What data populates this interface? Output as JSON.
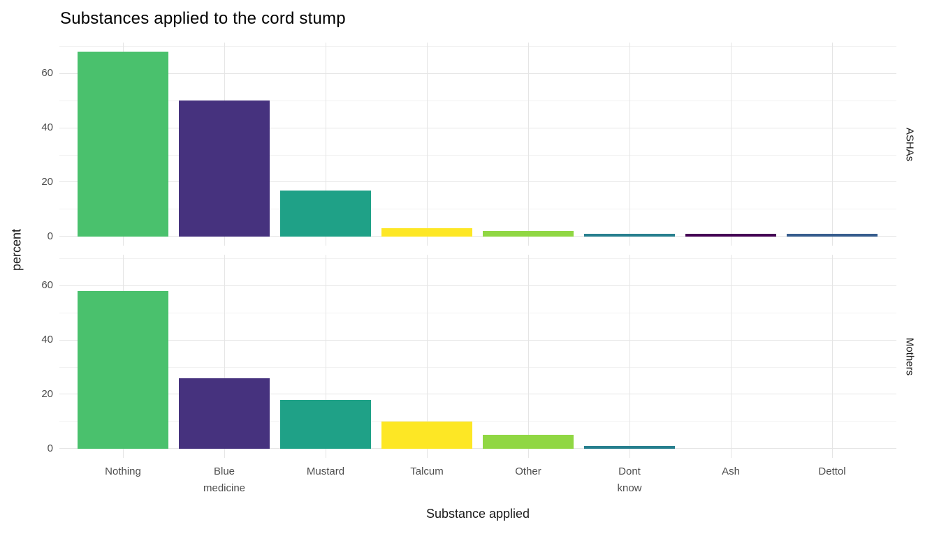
{
  "chart_data": {
    "type": "bar",
    "title": "Substances applied to the cord stump",
    "xlabel": "Substance applied",
    "ylabel": "percent",
    "facet_layout": "rows-right-strips",
    "categories": [
      "Nothing",
      "Blue medicine",
      "Mustard",
      "Talcum",
      "Other",
      "Dont know",
      "Ash",
      "Dettol"
    ],
    "bar_colors": [
      "#4AC16D",
      "#46327E",
      "#1FA187",
      "#FDE725",
      "#90D743",
      "#277F8E",
      "#440154",
      "#365C8D"
    ],
    "series": [
      {
        "name": "ASHAs",
        "values": [
          68,
          50,
          17,
          3,
          2,
          1,
          1,
          1
        ]
      },
      {
        "name": "Mothers",
        "values": [
          58,
          26,
          18,
          10,
          5,
          1,
          0,
          0
        ]
      }
    ],
    "y_ticks": [
      0,
      20,
      40,
      60
    ],
    "y_minor_ticks": [
      10,
      30,
      50,
      70
    ],
    "ylim": [
      0,
      68
    ],
    "grid": true,
    "legend": false,
    "theme": {
      "background": "#FFFFFF",
      "major_grid_color": "#E5E5E5",
      "minor_grid_color": "#F2F2F2",
      "tick_label_color": "#4D4D4D",
      "title_color": "#000000",
      "axis_title_color": "#1A1A1A",
      "strip_text_color": "#1A1A1A"
    }
  }
}
